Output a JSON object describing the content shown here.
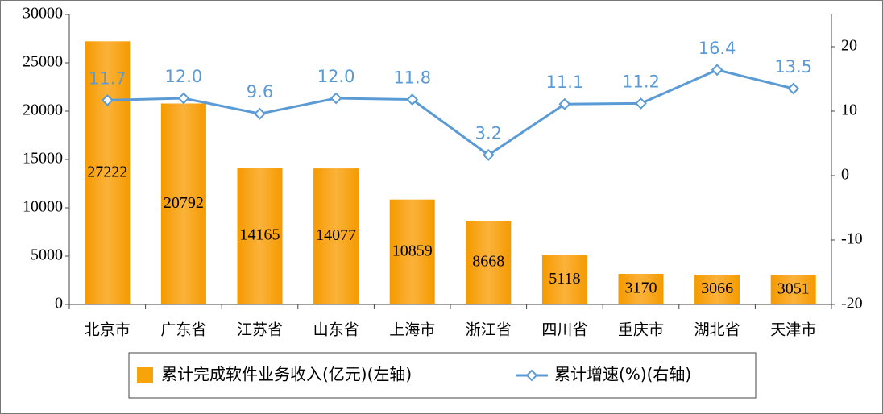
{
  "chart_data": {
    "type": "bar",
    "categories": [
      "北京市",
      "广东省",
      "江苏省",
      "山东省",
      "上海市",
      "浙江省",
      "四川省",
      "重庆市",
      "湖北省",
      "天津市"
    ],
    "series": [
      {
        "name": "累计完成软件业务收入(亿元)(左轴)",
        "color": "#f7a30a",
        "values": [
          27222,
          20792,
          14165,
          14077,
          10859,
          8668,
          5118,
          3170,
          3066,
          3051
        ]
      },
      {
        "name": "累计增速(%)(右轴)",
        "color": "#5b9bd5",
        "type": "line",
        "axis": "y2",
        "values": [
          11.7,
          12.0,
          9.6,
          12.0,
          11.8,
          3.2,
          11.1,
          11.2,
          16.4,
          13.5
        ],
        "value_labels": [
          "11.7",
          "12.0",
          "9.6",
          "12.0",
          "11.8",
          "3.2",
          "11.1",
          "11.2",
          "16.4",
          "13.5"
        ]
      }
    ],
    "ylim": [
      0,
      30000
    ],
    "yticks": [
      0,
      5000,
      10000,
      15000,
      20000,
      25000,
      30000
    ],
    "y2lim": [
      -20,
      25
    ],
    "y2ticks": [
      -20,
      -10,
      0,
      10,
      20
    ],
    "legend": "bottom"
  }
}
